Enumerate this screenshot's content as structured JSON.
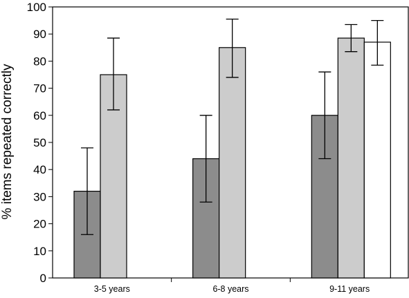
{
  "chart_data": {
    "type": "bar",
    "title": "",
    "xlabel": "",
    "ylabel": "% items repeated correctly",
    "ylim": [
      0,
      100
    ],
    "yticks": [
      0,
      10,
      20,
      30,
      40,
      50,
      60,
      70,
      80,
      90,
      100
    ],
    "categories": [
      "3-5 years",
      "6-8 years",
      "9-11 years"
    ],
    "grid": false,
    "legend": "none",
    "series": [
      {
        "color": "#8c8c8c",
        "values": [
          32,
          44,
          60
        ],
        "error_low": [
          16,
          28,
          44
        ],
        "error_high": [
          48,
          60,
          76
        ]
      },
      {
        "color": "#cccccc",
        "values": [
          75,
          85,
          88.5
        ],
        "error_low": [
          62,
          74,
          83.5
        ],
        "error_high": [
          88.5,
          95.5,
          93.5
        ]
      },
      {
        "color": "#ffffff",
        "values": [
          null,
          null,
          87
        ],
        "error_low": [
          null,
          null,
          78.5
        ],
        "error_high": [
          null,
          null,
          95
        ]
      }
    ]
  }
}
